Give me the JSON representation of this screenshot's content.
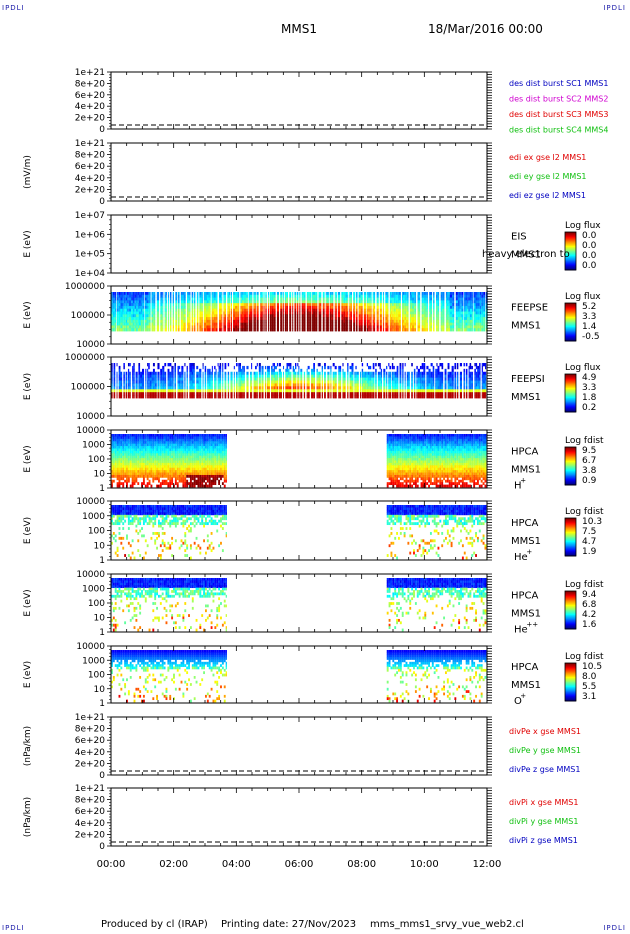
{
  "corner_labels": {
    "top_left": "IPDLI",
    "top_right": "IPDLI",
    "bottom_left": "IPDLI",
    "bottom_right": "IPDLI"
  },
  "header": {
    "spacecraft": "MMS1",
    "date": "18/Mar/2016 00:00"
  },
  "footer": {
    "produced_by": "Produced by cl (IRAP)",
    "printing_date": "Printing date: 27/Nov/2023",
    "script": "mms_mms1_srvy_vue_web2.cl"
  },
  "time_axis": {
    "ticks": [
      "00:00",
      "02:00",
      "04:00",
      "06:00",
      "08:00",
      "10:00",
      "12:00"
    ],
    "range_hours": [
      0,
      12
    ]
  },
  "colors": {
    "red": "#e00000",
    "magenta": "#d000d0",
    "green": "#10c010",
    "blue": "#0000c0"
  },
  "chart_data": [
    {
      "type": "line",
      "id": "des_dist",
      "ylabel": "",
      "yticks": [
        "0",
        "2e+20",
        "4e+20",
        "6e+20",
        "8e+20",
        "1e+21"
      ],
      "ylim": [
        0,
        1e+21
      ],
      "zero_line": "dashed",
      "series": [
        {
          "name": "des dist burst SC1 MMS1",
          "color": "#0000c0"
        },
        {
          "name": "des dist burst SC2 MMS2",
          "color": "#d000d0"
        },
        {
          "name": "des dist burst SC3 MMS3",
          "color": "#e00000"
        },
        {
          "name": "des dist burst SC4 MMS4",
          "color": "#10c010"
        }
      ]
    },
    {
      "type": "line",
      "id": "edi_e",
      "ylabel": "(mV/m)",
      "yticks": [
        "0",
        "2e+20",
        "4e+20",
        "6e+20",
        "8e+20",
        "1e+21"
      ],
      "ylim": [
        0,
        1e+21
      ],
      "zero_line": "dashed",
      "series": [
        {
          "name": "edi ex gse l2 MMS1",
          "color": "#e00000"
        },
        {
          "name": "edi ey gse l2 MMS1",
          "color": "#10c010"
        },
        {
          "name": "edi ez gse l2 MMS1",
          "color": "#0000c0"
        }
      ]
    },
    {
      "type": "heatmap",
      "id": "eis",
      "ylabel": "E (eV)",
      "yticks": [
        "1e+04",
        "1e+05",
        "1e+06",
        "1e+07"
      ],
      "instrument": [
        "EIS",
        "MMS1"
      ],
      "extra_label": "heavy electron to",
      "cbar_title": "Log flux",
      "cbar_ticks": [
        "0.0",
        "0.0",
        "0.0",
        "0.0"
      ],
      "data": "empty"
    },
    {
      "type": "heatmap",
      "id": "feepse",
      "ylabel": "E (eV)",
      "yticks": [
        "10000",
        "100000",
        "1000000"
      ],
      "instrument": [
        "FEEPSE",
        "MMS1"
      ],
      "cbar_title": "Log flux",
      "cbar_ticks": [
        "5.2",
        "3.3",
        "1.4",
        "-0.5"
      ],
      "data_span_hours": [
        0,
        12
      ],
      "pattern": "dense striped coverage 00:00-12:00; high flux near 03:00-09:00 at low energies"
    },
    {
      "type": "heatmap",
      "id": "feepsi",
      "ylabel": "E (eV)",
      "yticks": [
        "10000",
        "100000",
        "1000000"
      ],
      "instrument": [
        "FEEPSI",
        "MMS1"
      ],
      "cbar_title": "Log flux",
      "cbar_ticks": [
        "4.9",
        "3.3",
        "1.8",
        "0.2"
      ],
      "data_span_hours": [
        0,
        12
      ],
      "pattern": "low-energy red band throughout; striped coverage"
    },
    {
      "type": "heatmap",
      "id": "hpca_h",
      "ylabel": "E (eV)",
      "yticks": [
        "1",
        "10",
        "100",
        "1000",
        "10000"
      ],
      "instrument": [
        "HPCA",
        "MMS1",
        "H",
        "+"
      ],
      "cbar_title": "Log fdist",
      "cbar_ticks": [
        "9.5",
        "6.7",
        "3.8",
        "0.9"
      ],
      "data_span_hours": [
        [
          0,
          3.7
        ],
        [
          8.8,
          12
        ]
      ]
    },
    {
      "type": "heatmap",
      "id": "hpca_he1",
      "ylabel": "E (eV)",
      "yticks": [
        "1",
        "10",
        "100",
        "1000",
        "10000"
      ],
      "instrument": [
        "HPCA",
        "MMS1",
        "He",
        "+"
      ],
      "cbar_title": "Log fdist",
      "cbar_ticks": [
        "10.3",
        "7.5",
        "4.7",
        "1.9"
      ],
      "data_span_hours": [
        [
          0,
          3.7
        ],
        [
          8.8,
          12
        ]
      ]
    },
    {
      "type": "heatmap",
      "id": "hpca_he2",
      "ylabel": "E (eV)",
      "yticks": [
        "1",
        "10",
        "100",
        "1000",
        "10000"
      ],
      "instrument": [
        "HPCA",
        "MMS1",
        "He",
        "++"
      ],
      "cbar_title": "Log fdist",
      "cbar_ticks": [
        "9.4",
        "6.8",
        "4.2",
        "1.6"
      ],
      "data_span_hours": [
        [
          0,
          3.7
        ],
        [
          8.8,
          12
        ]
      ]
    },
    {
      "type": "heatmap",
      "id": "hpca_o",
      "ylabel": "E (eV)",
      "yticks": [
        "1",
        "10",
        "100",
        "1000",
        "10000"
      ],
      "instrument": [
        "HPCA",
        "MMS1",
        "O",
        "+"
      ],
      "cbar_title": "Log fdist",
      "cbar_ticks": [
        "10.5",
        "8.0",
        "5.5",
        "3.1"
      ],
      "data_span_hours": [
        [
          0,
          3.7
        ],
        [
          8.8,
          12
        ]
      ]
    },
    {
      "type": "line",
      "id": "divpe",
      "ylabel": "(nPa/km)",
      "yticks": [
        "0",
        "2e+20",
        "4e+20",
        "6e+20",
        "8e+20",
        "1e+21"
      ],
      "ylim": [
        0,
        1e+21
      ],
      "zero_line": "dashed",
      "series": [
        {
          "name": "divPe x gse MMS1",
          "color": "#e00000"
        },
        {
          "name": "divPe y gse MMS1",
          "color": "#10c010"
        },
        {
          "name": "divPe z gse MMS1",
          "color": "#0000c0"
        }
      ]
    },
    {
      "type": "line",
      "id": "divpi",
      "ylabel": "(nPa/km)",
      "yticks": [
        "0",
        "2e+20",
        "4e+20",
        "6e+20",
        "8e+20",
        "1e+21"
      ],
      "ylim": [
        0,
        1e+21
      ],
      "zero_line": "dashed",
      "series": [
        {
          "name": "divPi x gse MMS1",
          "color": "#e00000"
        },
        {
          "name": "divPi y gse MMS1",
          "color": "#10c010"
        },
        {
          "name": "divPi z gse MMS1",
          "color": "#0000c0"
        }
      ]
    }
  ]
}
